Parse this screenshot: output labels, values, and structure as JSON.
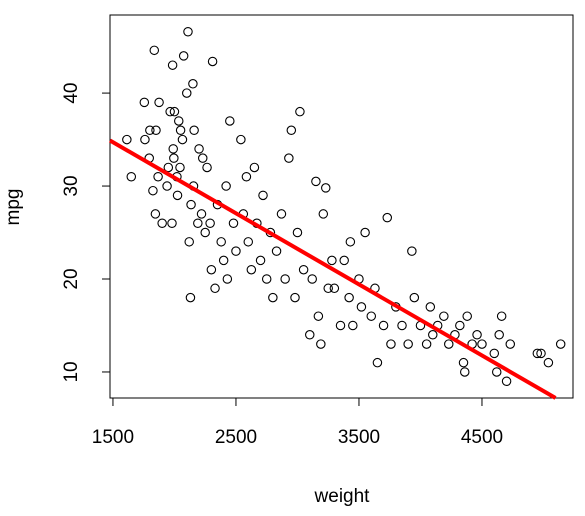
{
  "chart_data": {
    "type": "scatter",
    "x_label": "weight",
    "y_label": "mpg",
    "xlim": [
      1476,
      5240
    ],
    "ylim": [
      7.2,
      48.4
    ],
    "xticks": [
      1500,
      2500,
      3500,
      4500
    ],
    "yticks": [
      10,
      20,
      30,
      40
    ],
    "point_color": "#000000",
    "x": [
      1613,
      1649,
      1755,
      1760,
      1795,
      1800,
      1825,
      1836,
      1845,
      1850,
      1867,
      1875,
      1900,
      1940,
      1950,
      1965,
      1980,
      1985,
      1990,
      1995,
      2000,
      2020,
      2025,
      2035,
      2045,
      2050,
      2065,
      2075,
      2100,
      2110,
      2120,
      2130,
      2135,
      2150,
      2155,
      2160,
      2190,
      2200,
      2220,
      2230,
      2250,
      2265,
      2290,
      2300,
      2310,
      2330,
      2350,
      2380,
      2400,
      2420,
      2430,
      2450,
      2480,
      2500,
      2540,
      2560,
      2585,
      2600,
      2625,
      2650,
      2670,
      2700,
      2720,
      2750,
      2780,
      2800,
      2830,
      2870,
      2900,
      2930,
      2950,
      2980,
      3000,
      3020,
      3050,
      3100,
      3120,
      3150,
      3170,
      3190,
      3210,
      3230,
      3250,
      3280,
      3300,
      3350,
      3380,
      3420,
      3430,
      3450,
      3500,
      3520,
      3550,
      3600,
      3630,
      3650,
      3700,
      3730,
      3760,
      3800,
      3850,
      3900,
      3930,
      3950,
      4000,
      4050,
      4080,
      4100,
      4140,
      4190,
      4230,
      4280,
      4320,
      4350,
      4360,
      4380,
      4420,
      4460,
      4500,
      4600,
      4620,
      4640,
      4660,
      4700,
      4730,
      4950,
      4980,
      5040,
      5140
    ],
    "values": [
      35,
      31,
      39,
      35,
      33,
      36,
      29.5,
      44.6,
      27,
      36,
      31,
      39,
      26,
      30,
      32,
      38,
      26,
      43,
      34,
      33,
      38,
      31,
      29,
      37,
      32,
      36,
      35,
      44,
      40,
      46.6,
      24,
      18,
      28,
      41,
      30,
      36,
      26,
      34,
      27,
      33,
      25,
      32,
      26,
      21,
      43.4,
      19,
      28,
      24,
      22,
      30,
      20,
      37,
      26,
      23,
      35,
      27,
      31,
      24,
      21,
      32,
      26,
      22,
      29,
      20,
      25,
      18,
      23,
      27,
      20,
      33,
      36,
      18,
      25,
      38,
      21,
      14,
      20,
      30.5,
      16,
      13,
      27,
      29.8,
      19,
      22,
      19,
      15,
      22,
      18,
      24,
      15,
      20,
      17,
      25,
      16,
      19,
      11,
      15,
      26.6,
      13,
      17,
      15,
      13,
      23,
      18,
      15,
      13,
      17,
      14,
      15,
      16,
      13,
      14,
      15,
      11,
      10,
      16,
      13,
      14,
      13,
      12,
      10,
      14,
      16,
      9,
      13,
      12,
      12,
      11,
      13
    ],
    "line": {
      "color": "#ff0000",
      "x": [
        1476,
        5098
      ],
      "y": [
        34.9,
        7.2
      ]
    }
  }
}
